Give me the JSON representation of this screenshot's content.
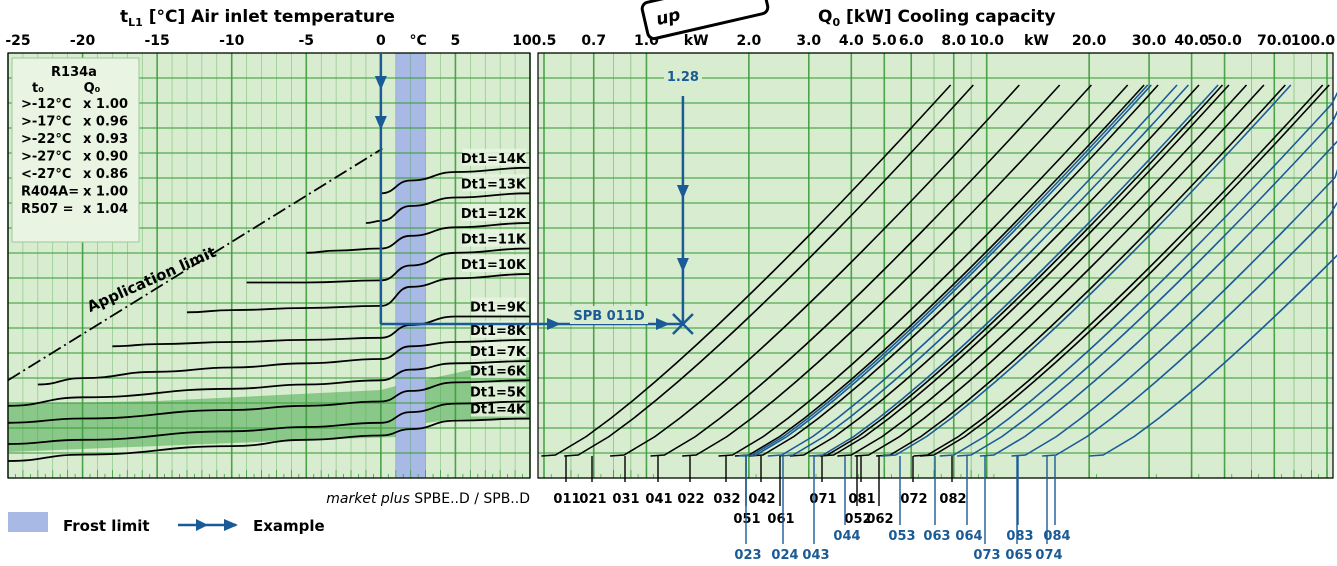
{
  "chart_data": {
    "type": "line",
    "left_panel": {
      "title_var": "t",
      "title_sub": "L1",
      "title_rest": "[°C] Air inlet temperature",
      "x_ticks": [
        "-25",
        "-20",
        "-15",
        "-10",
        "-5",
        "0",
        "°C",
        "5",
        "10"
      ],
      "x_values": [
        -25,
        -20,
        -15,
        -10,
        -5,
        0,
        5,
        10
      ],
      "xlim": [
        -25,
        10
      ],
      "frost_limit_range": [
        1,
        3
      ],
      "series": [
        {
          "name": "Dt1=4K",
          "x": [
            -25,
            -20,
            -10,
            -5,
            0,
            2,
            5,
            10
          ],
          "y": [
            0.04,
            0.055,
            0.075,
            0.09,
            0.1,
            0.115,
            0.135,
            0.14
          ]
        },
        {
          "name": "Dt1=5K",
          "x": [
            -25,
            -20,
            -10,
            -5,
            0,
            2,
            5,
            10
          ],
          "y": [
            0.08,
            0.09,
            0.11,
            0.12,
            0.13,
            0.155,
            0.175,
            0.18
          ]
        },
        {
          "name": "Dt1=6K",
          "x": [
            -25,
            -20,
            -10,
            -5,
            0,
            2,
            5,
            10
          ],
          "y": [
            0.13,
            0.14,
            0.16,
            0.17,
            0.18,
            0.205,
            0.225,
            0.23
          ]
        },
        {
          "name": "Dt1=7K",
          "x": [
            -25,
            -20,
            -10,
            -5,
            0,
            2,
            5,
            10
          ],
          "y": [
            0.17,
            0.19,
            0.21,
            0.22,
            0.23,
            0.255,
            0.27,
            0.275
          ]
        },
        {
          "name": "Dt1=8K",
          "x": [
            -23,
            -20,
            -15,
            -10,
            -5,
            0,
            2,
            5,
            10
          ],
          "y": [
            0.22,
            0.235,
            0.25,
            0.26,
            0.27,
            0.28,
            0.31,
            0.32,
            0.325
          ]
        },
        {
          "name": "Dt1=9K",
          "x": [
            -18,
            -15,
            -10,
            -5,
            0,
            2,
            5,
            10
          ],
          "y": [
            0.31,
            0.315,
            0.32,
            0.325,
            0.33,
            0.36,
            0.38,
            0.38
          ]
        },
        {
          "name": "Dt1=10K",
          "x": [
            -13,
            -10,
            -5,
            0,
            2,
            5,
            10
          ],
          "y": [
            0.39,
            0.395,
            0.4,
            0.405,
            0.45,
            0.47,
            0.48
          ]
        },
        {
          "name": "Dt1=11K",
          "x": [
            -9,
            -5,
            0,
            2,
            5,
            10
          ],
          "y": [
            0.46,
            0.46,
            0.465,
            0.5,
            0.53,
            0.54
          ]
        },
        {
          "name": "Dt1=12K",
          "x": [
            -5,
            -3,
            0,
            2,
            5,
            10
          ],
          "y": [
            0.53,
            0.535,
            0.54,
            0.57,
            0.59,
            0.6
          ]
        },
        {
          "name": "Dt1=13K",
          "x": [
            -1,
            0,
            2,
            5,
            10
          ],
          "y": [
            0.6,
            0.605,
            0.64,
            0.66,
            0.67
          ]
        },
        {
          "name": "Dt1=14K",
          "x": [
            0,
            2,
            5,
            10
          ],
          "y": [
            0.67,
            0.7,
            0.72,
            0.73
          ]
        }
      ],
      "application_limit_label": "Application limit"
    },
    "right_panel": {
      "title_var": "Q",
      "title_sub": "0",
      "title_rest": "[kW] Cooling capacity",
      "x_scale": "log",
      "xlim": [
        0.5,
        100
      ],
      "x_ticks": [
        {
          "label": "0.5",
          "value": 0.5
        },
        {
          "label": "0.7",
          "value": 0.7
        },
        {
          "label": "1.0",
          "value": 1.0
        },
        {
          "label": "kW",
          "value": 1.4
        },
        {
          "label": "2.0",
          "value": 2.0
        },
        {
          "label": "3.0",
          "value": 3.0
        },
        {
          "label": "4.0",
          "value": 4.0
        },
        {
          "label": "5.0",
          "value": 5.0
        },
        {
          "label": "6.0",
          "value": 6.0
        },
        {
          "label": "8.0",
          "value": 8.0
        },
        {
          "label": "10.0",
          "value": 10.0
        },
        {
          "label": "kW",
          "value": 14.0
        },
        {
          "label": "20.0",
          "value": 20.0
        },
        {
          "label": "30.0",
          "value": 30.0
        },
        {
          "label": "40.0",
          "value": 40.0
        },
        {
          "label": "50.0",
          "value": 50.0
        },
        {
          "label": "70.0",
          "value": 70.0
        },
        {
          "label": "100.0",
          "value": 100.0
        }
      ],
      "black_models": [
        {
          "id": "011",
          "label_row": 1
        },
        {
          "id": "021",
          "label_row": 1
        },
        {
          "id": "031",
          "label_row": 1
        },
        {
          "id": "041",
          "label_row": 1
        },
        {
          "id": "022",
          "label_row": 1
        },
        {
          "id": "032",
          "label_row": 1
        },
        {
          "id": "042",
          "label_row": 1
        },
        {
          "id": "051",
          "label_row": 2
        },
        {
          "id": "061",
          "label_row": 2
        },
        {
          "id": "071",
          "label_row": 1
        },
        {
          "id": "081",
          "label_row": 1
        },
        {
          "id": "052",
          "label_row": 2
        },
        {
          "id": "062",
          "label_row": 2
        },
        {
          "id": "072",
          "label_row": 1
        },
        {
          "id": "082",
          "label_row": 1
        }
      ],
      "blue_models": [
        {
          "id": "023",
          "label_row": 4
        },
        {
          "id": "024",
          "label_row": 4
        },
        {
          "id": "043",
          "label_row": 4
        },
        {
          "id": "044",
          "label_row": 3
        },
        {
          "id": "053",
          "label_row": 3
        },
        {
          "id": "063",
          "label_row": 3
        },
        {
          "id": "064",
          "label_row": 3
        },
        {
          "id": "073",
          "label_row": 4
        },
        {
          "id": "065",
          "label_row": 4
        },
        {
          "id": "074",
          "label_row": 4
        },
        {
          "id": "083",
          "label_row": 3
        },
        {
          "id": "084",
          "label_row": 3
        }
      ]
    },
    "example": {
      "value_label": "1.28",
      "model_label": "SPB 011D",
      "q0_kw": 1.28,
      "tl1_c": 0,
      "dt1_k": 7
    },
    "r134a_table": {
      "header": "R134a",
      "col1": "t₀",
      "col2": "Q₀",
      "rows": [
        [
          ">-12°C",
          "x 1.00"
        ],
        [
          ">-17°C",
          "x 0.96"
        ],
        [
          ">-22°C",
          "x 0.93"
        ],
        [
          ">-27°C",
          "x 0.90"
        ],
        [
          "<-27°C",
          "x 0.86"
        ],
        [
          "R404A=",
          "x 1.00"
        ],
        [
          "R507  =",
          "x 1.04"
        ]
      ]
    },
    "legend": {
      "frost_limit": "Frost limit",
      "example": "Example"
    },
    "product_line": {
      "italic": "market plus",
      "rest": " SPBE..D / SPB..D"
    },
    "stamp_text": "up"
  }
}
